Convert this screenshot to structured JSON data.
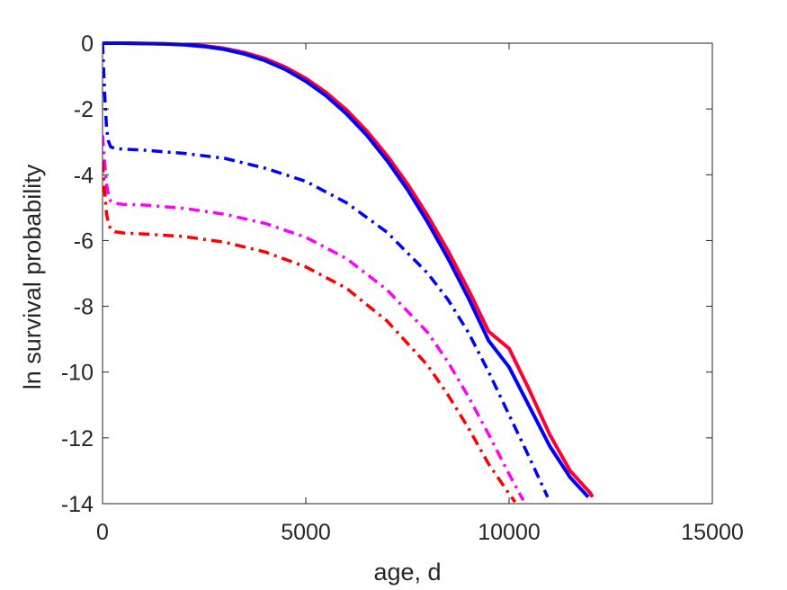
{
  "chart_data": {
    "type": "line",
    "title": "",
    "xlabel": "age, d",
    "ylabel": "ln survival probability",
    "xlim": [
      0,
      15000
    ],
    "ylim": [
      -14,
      0
    ],
    "xticks": [
      0,
      5000,
      10000,
      15000
    ],
    "yticks": [
      0,
      -2,
      -4,
      -6,
      -8,
      -10,
      -12,
      -14
    ],
    "grid": false,
    "legend": "none",
    "series": [
      {
        "color": "#ff0033",
        "style": "solid",
        "x": [
          0,
          500,
          1000,
          1500,
          2000,
          2500,
          3000,
          3500,
          4000,
          4500,
          5000,
          5500,
          6000,
          6500,
          7000,
          7500,
          8000,
          8500,
          9000,
          9500,
          10000,
          10500,
          11000,
          11500,
          12000,
          12050
        ],
        "y": [
          0,
          0,
          -0.01,
          -0.02,
          -0.04,
          -0.08,
          -0.16,
          -0.29,
          -0.47,
          -0.73,
          -1.07,
          -1.5,
          -2.03,
          -2.67,
          -3.42,
          -4.28,
          -5.25,
          -6.32,
          -7.5,
          -8.77,
          -9.28,
          -10.55,
          -11.9,
          -13.0,
          -13.68,
          -13.8
        ]
      },
      {
        "color": "#0000ff",
        "style": "solid",
        "x": [
          0,
          500,
          1000,
          1500,
          2000,
          2500,
          3000,
          3500,
          4000,
          4500,
          5000,
          5500,
          6000,
          6500,
          7000,
          7500,
          8000,
          8500,
          9000,
          9500,
          10000,
          10500,
          11000,
          11500,
          11950
        ],
        "y": [
          0,
          0,
          -0.01,
          -0.02,
          -0.05,
          -0.1,
          -0.19,
          -0.33,
          -0.53,
          -0.8,
          -1.16,
          -1.6,
          -2.15,
          -2.8,
          -3.57,
          -4.45,
          -5.45,
          -6.55,
          -7.75,
          -9.05,
          -9.85,
          -11.05,
          -12.25,
          -13.2,
          -13.8
        ]
      },
      {
        "color": "#0000ff",
        "style": "dashdot",
        "x": [
          0,
          50,
          100,
          150,
          200,
          300,
          500,
          1000,
          2000,
          3000,
          4000,
          5000,
          6000,
          7000,
          8000,
          8500,
          9000,
          9500,
          10000,
          10500,
          10950
        ],
        "y": [
          0,
          -1.5,
          -2.6,
          -3.0,
          -3.15,
          -3.2,
          -3.22,
          -3.25,
          -3.35,
          -3.5,
          -3.8,
          -4.2,
          -4.85,
          -5.75,
          -7.0,
          -7.8,
          -8.8,
          -10.0,
          -11.3,
          -12.6,
          -13.8
        ]
      },
      {
        "color": "#ff00ff",
        "style": "dashdot",
        "x": [
          0,
          50,
          100,
          150,
          200,
          300,
          500,
          1000,
          2000,
          3000,
          4000,
          5000,
          6000,
          7000,
          8000,
          8500,
          9000,
          9500,
          10000,
          10350
        ],
        "y": [
          -2.8,
          -3.6,
          -4.3,
          -4.65,
          -4.8,
          -4.87,
          -4.9,
          -4.92,
          -5.02,
          -5.2,
          -5.48,
          -5.9,
          -6.55,
          -7.5,
          -8.8,
          -9.7,
          -10.75,
          -11.9,
          -13.1,
          -13.9
        ]
      },
      {
        "color": "#ff0000",
        "style": "dashdot",
        "x": [
          0,
          50,
          100,
          150,
          200,
          300,
          500,
          1000,
          2000,
          3000,
          4000,
          5000,
          6000,
          7000,
          8000,
          8500,
          9000,
          9500,
          10000,
          10150
        ],
        "y": [
          -3.6,
          -4.5,
          -5.2,
          -5.5,
          -5.65,
          -5.73,
          -5.77,
          -5.8,
          -5.88,
          -6.05,
          -6.35,
          -6.8,
          -7.45,
          -8.45,
          -9.8,
          -10.7,
          -11.7,
          -12.8,
          -13.7,
          -13.95
        ]
      }
    ]
  }
}
